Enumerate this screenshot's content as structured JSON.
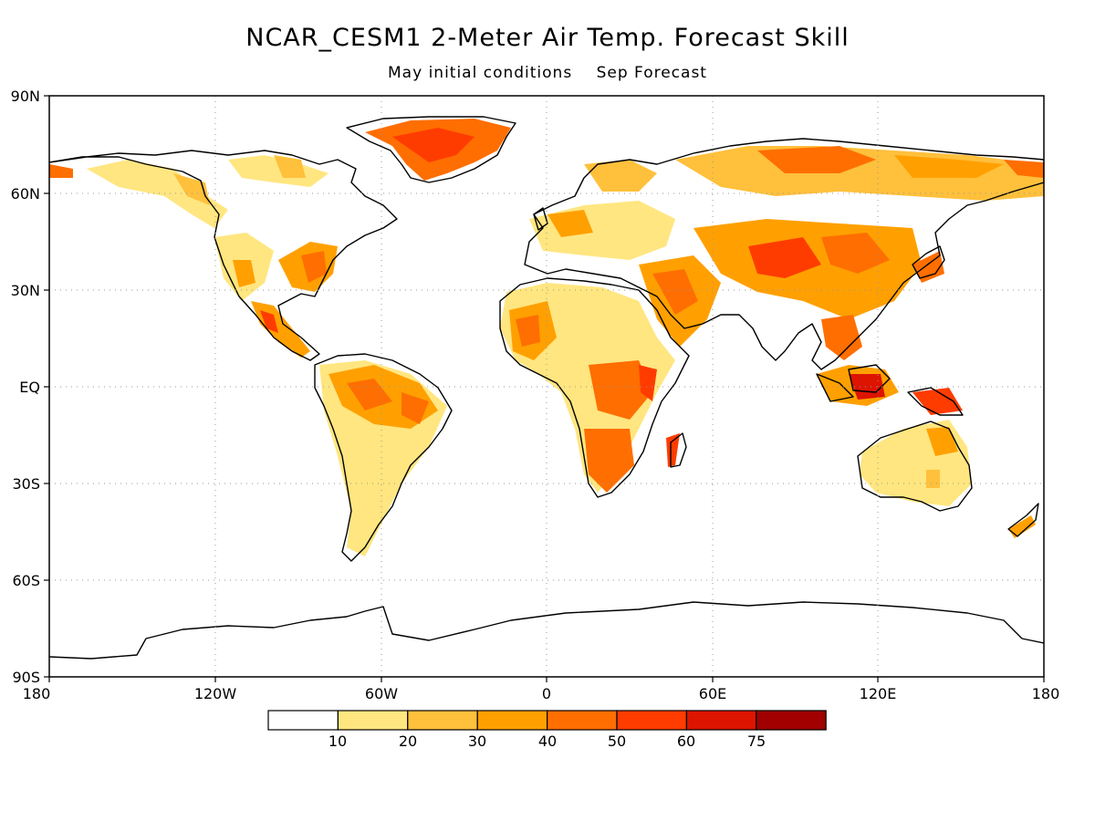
{
  "title": "NCAR_CESM1 2-Meter Air Temp. Forecast Skill",
  "subtitle": {
    "conditions": "May initial conditions",
    "forecast": "Sep Forecast"
  },
  "axes": {
    "lat_labels": [
      "90N",
      "60N",
      "30N",
      "EQ",
      "30S",
      "60S",
      "90S"
    ],
    "lon_labels": [
      "180",
      "120W",
      "60W",
      "0",
      "60E",
      "120E",
      "180"
    ]
  },
  "colorbar": {
    "labels": [
      "10",
      "20",
      "30",
      "40",
      "50",
      "60",
      "75"
    ],
    "colors": [
      "#ffffff",
      "#ffe680",
      "#ffc03c",
      "#ffa000",
      "#ff6e00",
      "#ff3c00",
      "#dc1400",
      "#a00000"
    ]
  },
  "colors": {
    "land_outline": "#000000",
    "grid": "#999999"
  }
}
